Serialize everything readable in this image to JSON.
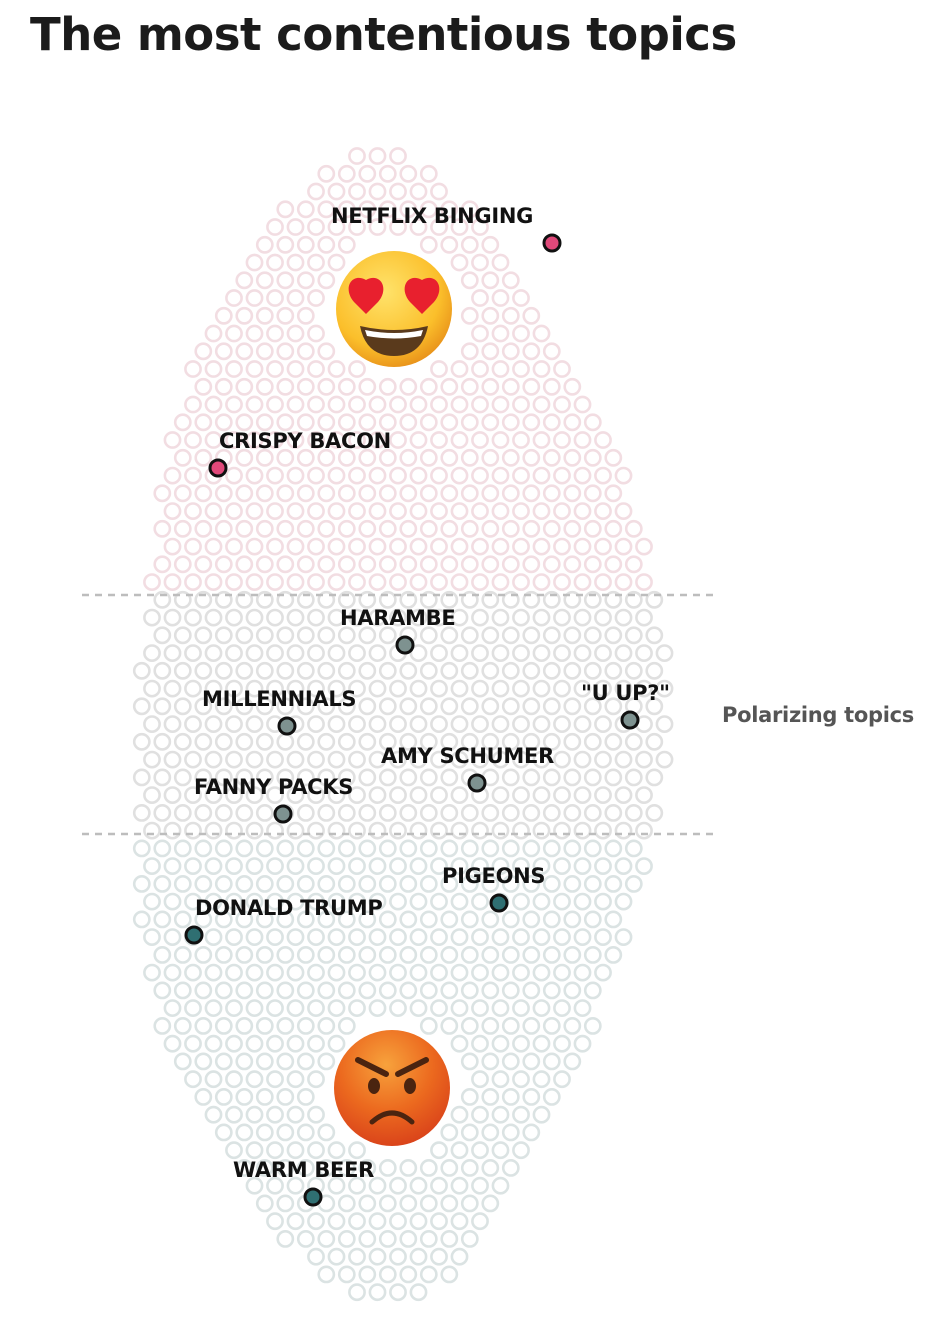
{
  "title": "The most contentious topics",
  "colors": {
    "love": "#e0497a",
    "neutral": "#7e9290",
    "hate": "#2f6f72",
    "bg_love": "#f2dde2",
    "bg_neutral": "#e0e0e0",
    "bg_hate": "#dbe3e3",
    "divider": "#bdbdbd",
    "band_text": "#555555"
  },
  "chart_data": {
    "type": "scatter",
    "title": "The most contentious topics",
    "band_label": "Polarizing topics",
    "icons": {
      "top": "heart-eyes-emoji-icon",
      "bottom": "angry-face-emoji-icon"
    },
    "points": [
      {
        "label": "NETFLIX BINGING",
        "group": "love"
      },
      {
        "label": "CRISPY BACON",
        "group": "love"
      },
      {
        "label": "HARAMBE",
        "group": "neutral"
      },
      {
        "label": "MILLENNIALS",
        "group": "neutral"
      },
      {
        "label": "\"U UP?\"",
        "group": "neutral"
      },
      {
        "label": "AMY SCHUMER",
        "group": "neutral"
      },
      {
        "label": "FANNY PACKS",
        "group": "neutral"
      },
      {
        "label": "PIGEONS",
        "group": "hate"
      },
      {
        "label": "DONALD TRUMP",
        "group": "hate"
      },
      {
        "label": "WARM BEER",
        "group": "hate"
      }
    ]
  }
}
